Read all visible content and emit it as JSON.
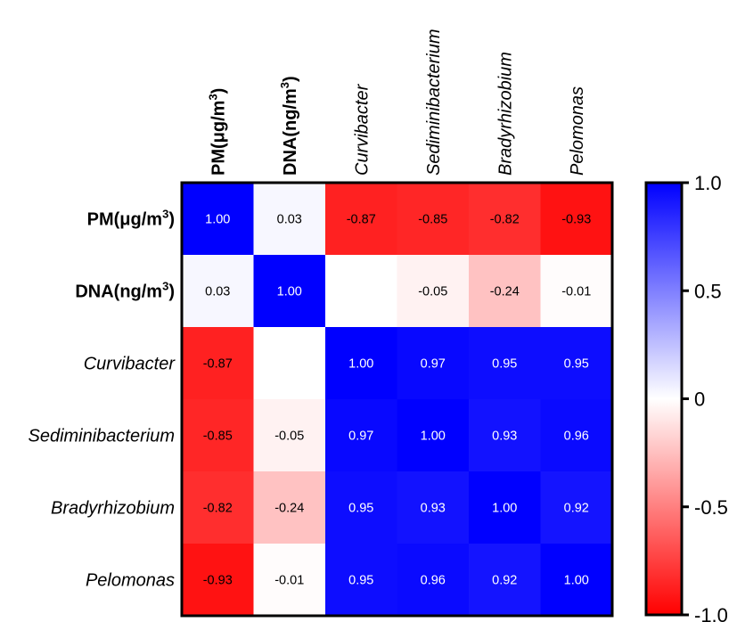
{
  "chart_data": {
    "type": "heatmap",
    "rows": [
      {
        "label": "PM(μg/m",
        "sup": "3",
        "close": ")",
        "bold": true,
        "italic": false
      },
      {
        "label": "DNA(ng/m",
        "sup": "3",
        "close": ")",
        "bold": true,
        "italic": false
      },
      {
        "label": "Curvibacter",
        "sup": "",
        "close": "",
        "bold": false,
        "italic": true
      },
      {
        "label": "Sediminibacterium",
        "sup": "",
        "close": "",
        "bold": false,
        "italic": true
      },
      {
        "label": "Bradyrhizobium",
        "sup": "",
        "close": "",
        "bold": false,
        "italic": true
      },
      {
        "label": "Pelomonas",
        "sup": "",
        "close": "",
        "bold": false,
        "italic": true
      }
    ],
    "columns": [
      {
        "label": "PM(μg/m",
        "sup": "3",
        "close": ")",
        "bold": true,
        "italic": false
      },
      {
        "label": "DNA(ng/m",
        "sup": "3",
        "close": ")",
        "bold": true,
        "italic": false
      },
      {
        "label": "Curvibacter",
        "sup": "",
        "close": "",
        "bold": false,
        "italic": true
      },
      {
        "label": "Sediminibacterium",
        "sup": "",
        "close": "",
        "bold": false,
        "italic": true
      },
      {
        "label": "Bradyrhizobium",
        "sup": "",
        "close": "",
        "bold": false,
        "italic": true
      },
      {
        "label": "Pelomonas",
        "sup": "",
        "close": "",
        "bold": false,
        "italic": true
      }
    ],
    "values": [
      [
        1.0,
        0.03,
        -0.87,
        -0.85,
        -0.82,
        -0.93
      ],
      [
        0.03,
        1.0,
        null,
        -0.05,
        -0.24,
        -0.01
      ],
      [
        -0.87,
        null,
        1.0,
        0.97,
        0.95,
        0.95
      ],
      [
        -0.85,
        -0.05,
        0.97,
        1.0,
        0.93,
        0.96
      ],
      [
        -0.82,
        -0.24,
        0.95,
        0.93,
        1.0,
        0.92
      ],
      [
        -0.93,
        -0.01,
        0.95,
        0.96,
        0.92,
        1.0
      ]
    ],
    "colorbar": {
      "range": [
        -1.0,
        1.0
      ],
      "ticks": [
        {
          "value": 1.0,
          "label": "1.0"
        },
        {
          "value": 0.5,
          "label": "0.5"
        },
        {
          "value": 0,
          "label": "0"
        },
        {
          "value": -0.5,
          "label": "-0.5"
        },
        {
          "value": -1.0,
          "label": "-1.0"
        }
      ],
      "colors": {
        "positive": "#0000ff",
        "zero": "#ffffff",
        "negative": "#ff0000"
      }
    }
  }
}
